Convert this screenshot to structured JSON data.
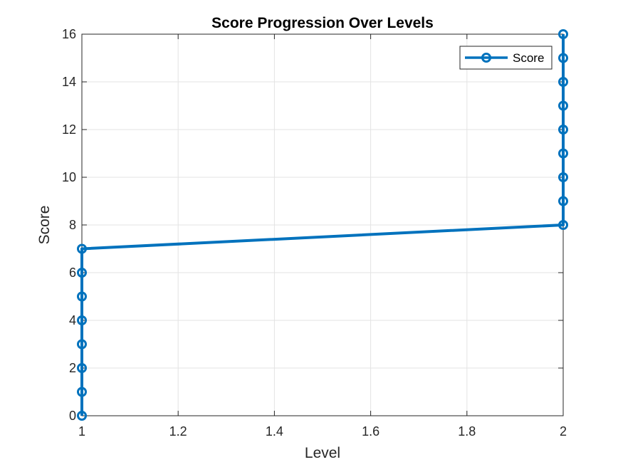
{
  "chart_data": {
    "type": "line",
    "title": "Score Progression Over Levels",
    "xlabel": "Level",
    "ylabel": "Score",
    "xlim": [
      1,
      2
    ],
    "ylim": [
      0,
      16
    ],
    "xticks": [
      "1",
      "1.2",
      "1.4",
      "1.6",
      "1.8",
      "2"
    ],
    "yticks": [
      "0",
      "2",
      "4",
      "6",
      "8",
      "10",
      "12",
      "14",
      "16"
    ],
    "grid": true,
    "legend_position": "top-right",
    "series": [
      {
        "name": "Score",
        "color": "#0072BD",
        "marker": "circle",
        "x": [
          1,
          1,
          1,
          1,
          1,
          1,
          1,
          1,
          2,
          2,
          2,
          2,
          2,
          2,
          2,
          2,
          2
        ],
        "y": [
          0,
          1,
          2,
          3,
          4,
          5,
          6,
          7,
          8,
          9,
          10,
          11,
          12,
          13,
          14,
          15,
          16
        ]
      }
    ]
  }
}
